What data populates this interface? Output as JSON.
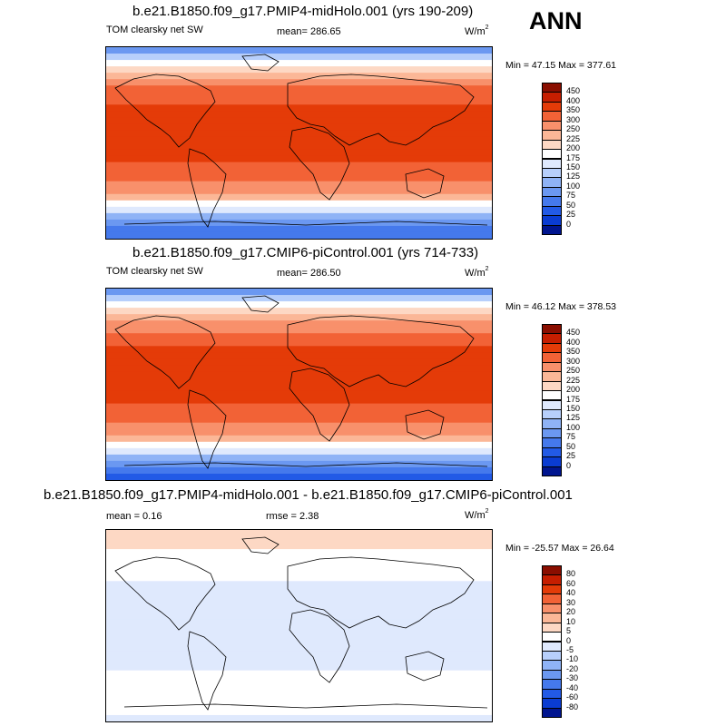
{
  "season": "ANN",
  "chart_data": [
    {
      "type": "heatmap",
      "title": "b.e21.B1850.f09_g17.PMIP4-midHolo.001 (yrs 190-209)",
      "field": "TOM clearsky net SW",
      "mean_label": "mean= 286.65",
      "units": "W/m",
      "units_sup": "2",
      "min_max_label": "Min =  47.15 Max = 377.61",
      "min": 47.15,
      "max": 377.61,
      "mean": 286.65,
      "levels": [
        "450",
        "400",
        "350",
        "300",
        "250",
        "225",
        "200",
        "175",
        "150",
        "125",
        "100",
        "75",
        "50",
        "25",
        "0"
      ],
      "colors": [
        "#8a0e00",
        "#c61e00",
        "#e43b08",
        "#f26236",
        "#f8906b",
        "#fbb797",
        "#fdd8c4",
        "#ffffff",
        "#dfe9fd",
        "#b7cffb",
        "#8fb3f6",
        "#6b98f1",
        "#4579ec",
        "#225ae6",
        "#0a3cd2",
        "#00158f"
      ],
      "bands": [
        80,
        140,
        185,
        210,
        240,
        280,
        300,
        320,
        340,
        350,
        355,
        360,
        365,
        370,
        375,
        372,
        365,
        355,
        345,
        330,
        310,
        285,
        255,
        225,
        195,
        160,
        120,
        90,
        65,
        50
      ]
    },
    {
      "type": "heatmap",
      "title": "b.e21.B1850.f09_g17.CMIP6-piControl.001 (yrs 714-733)",
      "field": "TOM clearsky net SW",
      "mean_label": "mean= 286.50",
      "units": "W/m",
      "units_sup": "2",
      "min_max_label": "Min =  46.12 Max = 378.53",
      "min": 46.12,
      "max": 378.53,
      "mean": 286.5,
      "levels": [
        "450",
        "400",
        "350",
        "300",
        "250",
        "225",
        "200",
        "175",
        "150",
        "125",
        "100",
        "75",
        "50",
        "25",
        "0"
      ],
      "colors": [
        "#8a0e00",
        "#c61e00",
        "#e43b08",
        "#f26236",
        "#f8906b",
        "#fbb797",
        "#fdd8c4",
        "#ffffff",
        "#dfe9fd",
        "#b7cffb",
        "#8fb3f6",
        "#6b98f1",
        "#4579ec",
        "#225ae6",
        "#0a3cd2",
        "#00158f"
      ],
      "bands": [
        78,
        135,
        180,
        205,
        235,
        275,
        298,
        318,
        338,
        350,
        356,
        362,
        366,
        370,
        376,
        373,
        366,
        356,
        346,
        331,
        311,
        286,
        256,
        226,
        196,
        161,
        121,
        90,
        64,
        49
      ]
    },
    {
      "type": "heatmap",
      "title": "b.e21.B1850.f09_g17.PMIP4-midHolo.001 - b.e21.B1850.f09_g17.CMIP6-piControl.001",
      "mean_label": "mean =    0.16",
      "rmse_label": "rmse =    2.38",
      "units": "W/m",
      "units_sup": "2",
      "min_max_label": "Min = -25.57 Max =  26.64",
      "min": -25.57,
      "max": 26.64,
      "mean": 0.16,
      "rmse": 2.38,
      "levels": [
        "80",
        "60",
        "40",
        "30",
        "20",
        "10",
        "5",
        "0",
        "-5",
        "-10",
        "-20",
        "-30",
        "-40",
        "-60",
        "-80"
      ],
      "colors": [
        "#8a0e00",
        "#c61e00",
        "#e43b08",
        "#f26236",
        "#f8906b",
        "#fbb797",
        "#fdd8c4",
        "#ffffff",
        "#dfe9fd",
        "#b7cffb",
        "#8fb3f6",
        "#6b98f1",
        "#4579ec",
        "#225ae6",
        "#0a3cd2",
        "#00158f"
      ],
      "bands": [
        6,
        6,
        5,
        4,
        3,
        3,
        2,
        1,
        -2,
        -2,
        -1,
        -1,
        -2,
        -2,
        -2,
        -2,
        -2,
        -2,
        -1,
        -1,
        -1,
        -1,
        0,
        1,
        2,
        3,
        4,
        3,
        1,
        -1
      ]
    }
  ]
}
